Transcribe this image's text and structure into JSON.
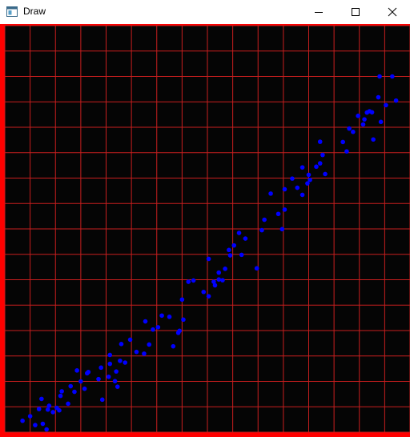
{
  "window": {
    "title": "Draw",
    "icon": "app-window-icon",
    "controls": [
      "minimize-icon",
      "maximize-icon",
      "close-icon"
    ]
  },
  "colors": {
    "background": "#050505",
    "grid": "#c81e1e",
    "border": "#ff0000",
    "points": "#0000ff"
  },
  "chart_data": {
    "type": "scatter",
    "title": "",
    "xlabel": "",
    "ylabel": "",
    "grid": true,
    "xlim": [
      0,
      16
    ],
    "ylim": [
      0,
      16
    ],
    "series": [
      {
        "points": [
          [
            0.7,
            0.45
          ],
          [
            1.0,
            0.63
          ],
          [
            1.2,
            0.28
          ],
          [
            1.35,
            0.91
          ],
          [
            1.5,
            0.33
          ],
          [
            1.45,
            1.31
          ],
          [
            1.65,
            0.11
          ],
          [
            1.7,
            0.89
          ],
          [
            1.75,
            1.04
          ],
          [
            1.9,
            0.79
          ],
          [
            2.05,
            0.96
          ],
          [
            2.15,
            0.86
          ],
          [
            2.2,
            1.43
          ],
          [
            2.25,
            1.61
          ],
          [
            2.5,
            1.12
          ],
          [
            2.6,
            1.81
          ],
          [
            2.75,
            1.59
          ],
          [
            2.85,
            2.43
          ],
          [
            3.0,
            2.0
          ],
          [
            3.15,
            1.71
          ],
          [
            3.25,
            2.32
          ],
          [
            3.3,
            2.37
          ],
          [
            3.7,
            2.09
          ],
          [
            3.8,
            2.54
          ],
          [
            3.85,
            1.28
          ],
          [
            4.1,
            2.18
          ],
          [
            4.15,
            2.69
          ],
          [
            4.15,
            3.04
          ],
          [
            4.35,
            2.01
          ],
          [
            4.4,
            2.39
          ],
          [
            4.45,
            1.79
          ],
          [
            4.55,
            2.81
          ],
          [
            4.6,
            3.47
          ],
          [
            4.75,
            2.74
          ],
          [
            4.95,
            3.64
          ],
          [
            5.2,
            3.16
          ],
          [
            5.5,
            3.09
          ],
          [
            5.55,
            4.36
          ],
          [
            5.7,
            3.45
          ],
          [
            5.85,
            4.04
          ],
          [
            6.05,
            4.13
          ],
          [
            6.2,
            4.59
          ],
          [
            6.5,
            4.54
          ],
          [
            6.65,
            3.38
          ],
          [
            6.85,
            3.91
          ],
          [
            6.9,
            3.99
          ],
          [
            7.05,
            4.43
          ],
          [
            7.0,
            5.22
          ],
          [
            7.25,
            5.92
          ],
          [
            7.45,
            5.97
          ],
          [
            7.85,
            5.52
          ],
          [
            8.05,
            5.35
          ],
          [
            8.25,
            5.92
          ],
          [
            8.05,
            6.82
          ],
          [
            8.45,
            6.28
          ],
          [
            8.3,
            5.78
          ],
          [
            8.45,
            6.01
          ],
          [
            8.6,
            5.98
          ],
          [
            8.7,
            6.43
          ],
          [
            8.85,
            7.17
          ],
          [
            8.9,
            6.96
          ],
          [
            9.05,
            7.35
          ],
          [
            9.35,
            6.98
          ],
          [
            9.25,
            7.84
          ],
          [
            9.5,
            7.62
          ],
          [
            9.95,
            6.45
          ],
          [
            10.15,
            7.95
          ],
          [
            10.25,
            8.36
          ],
          [
            10.5,
            9.39
          ],
          [
            10.8,
            8.59
          ],
          [
            11.05,
            8.76
          ],
          [
            10.95,
            7.99
          ],
          [
            11.05,
            9.56
          ],
          [
            11.35,
            9.98
          ],
          [
            11.55,
            9.62
          ],
          [
            11.75,
            9.34
          ],
          [
            11.95,
            9.79
          ],
          [
            11.75,
            10.42
          ],
          [
            12.0,
            10.13
          ],
          [
            12.05,
            9.93
          ],
          [
            12.3,
            10.45
          ],
          [
            12.45,
            10.58
          ],
          [
            12.55,
            10.91
          ],
          [
            12.45,
            11.43
          ],
          [
            12.65,
            10.16
          ],
          [
            13.35,
            11.42
          ],
          [
            13.5,
            11.05
          ],
          [
            13.6,
            11.95
          ],
          [
            13.75,
            11.82
          ],
          [
            13.95,
            12.45
          ],
          [
            14.15,
            12.11
          ],
          [
            14.2,
            12.31
          ],
          [
            14.3,
            12.58
          ],
          [
            14.4,
            12.63
          ],
          [
            14.5,
            12.59
          ],
          [
            14.55,
            11.52
          ],
          [
            14.75,
            13.18
          ],
          [
            14.8,
            14.0
          ],
          [
            14.85,
            12.21
          ],
          [
            15.05,
            12.87
          ],
          [
            15.3,
            14.0
          ],
          [
            15.45,
            13.05
          ]
        ]
      }
    ]
  }
}
